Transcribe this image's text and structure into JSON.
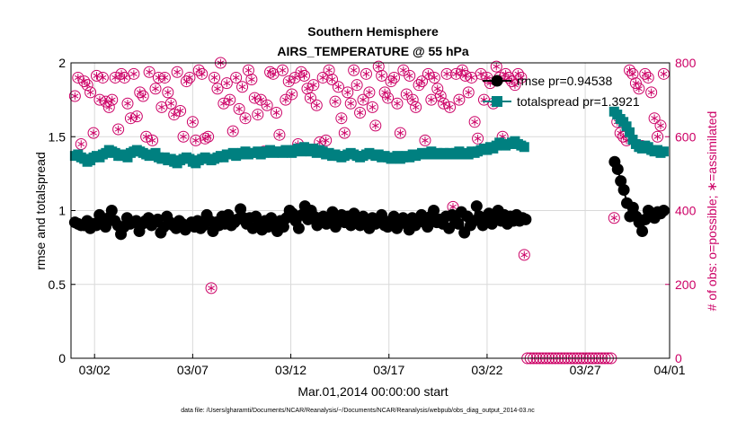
{
  "colors": {
    "rmse": "#000000",
    "spread": "#008080",
    "obs": "#cc0066",
    "grid": "#d9d9d9"
  },
  "chart_data": {
    "type": "line",
    "title": "Southern Hemisphere",
    "subtitle": "AIRS_TEMPERATURE @ 55 hPa",
    "xlabel": "Mar.01,2014 00:00:00 start",
    "ylabel_left": "rmse and totalspread",
    "ylabel_right": "# of obs: o=possible; ∗=assimilated",
    "footnote": "data file: /Users/gharamti/Documents/NCAR/Reanalysis/~/Documents/NCAR/Reanalysis/webpub/obs_diag_output_2014-03.nc",
    "xlim": [
      0.8,
      31.3
    ],
    "ylim_left": [
      0,
      2
    ],
    "ylim_right": [
      0,
      800
    ],
    "x_ticks": [
      {
        "v": 2,
        "label": "03/02"
      },
      {
        "v": 7,
        "label": "03/07"
      },
      {
        "v": 12,
        "label": "03/12"
      },
      {
        "v": 17,
        "label": "03/17"
      },
      {
        "v": 22,
        "label": "03/22"
      },
      {
        "v": 27,
        "label": "03/27"
      },
      {
        "v": 32,
        "label": "04/01"
      }
    ],
    "y_ticks_left": [
      0,
      0.5,
      1,
      1.5,
      2
    ],
    "y_ticks_right": [
      0,
      200,
      400,
      600,
      800
    ],
    "grid": true,
    "legend": {
      "placement": "top-right",
      "rmse_label": "rmse pr=0.94538",
      "spread_label": "totalspread pr=1.3921"
    },
    "series": [
      {
        "name": "rmse pr=0.94538",
        "axis": "left",
        "values": [
          0.92,
          0.91,
          0.9,
          0.9,
          0.93,
          0.88,
          0.91,
          0.9,
          0.97,
          0.92,
          0.89,
          0.95,
          1.0,
          0.93,
          0.9,
          0.84,
          0.89,
          0.95,
          0.91,
          0.92,
          0.93,
          0.86,
          0.91,
          0.93,
          0.95,
          0.9,
          0.92,
          0.94,
          0.85,
          0.89,
          0.96,
          0.92,
          0.9,
          0.88,
          0.93,
          0.91,
          0.87,
          0.9,
          0.92,
          0.89,
          0.93,
          0.88,
          0.9,
          0.97,
          0.93,
          0.86,
          0.92,
          0.9,
          0.96,
          0.91,
          0.97,
          0.9,
          0.92,
          0.94,
          1.01,
          0.95,
          0.91,
          0.95,
          0.88,
          0.96,
          0.91,
          0.87,
          0.93,
          0.89,
          0.95,
          0.91,
          0.86,
          0.93,
          0.89,
          0.95,
          1.0,
          0.98,
          0.93,
          0.88,
          0.97,
          1.03,
          0.94,
          1.0,
          0.96,
          0.9,
          0.95,
          0.96,
          0.91,
          0.93,
          0.99,
          0.89,
          0.94,
          0.97,
          0.92,
          0.96,
          0.9,
          0.98,
          0.94,
          0.9,
          0.96,
          0.93,
          0.88,
          0.95,
          0.91,
          0.94,
          0.97,
          0.9,
          0.89,
          0.93,
          0.96,
          0.88,
          0.92,
          0.95,
          0.91,
          0.87,
          0.95,
          0.9,
          0.93,
          0.97,
          0.92,
          0.89,
          0.96,
          1.0,
          0.92,
          0.94,
          0.91,
          0.96,
          0.88,
          0.97,
          0.94,
          0.91,
          0.99,
          0.85,
          0.96,
          0.9,
          0.93,
          1.03,
          0.96,
          0.9,
          0.94,
          0.98,
          0.91,
          0.95,
          1.0,
          0.93,
          0.97,
          0.91,
          0.96,
          0.93,
          0.97,
          0.93,
          0.95,
          0.94,
          null,
          null,
          null,
          null,
          null,
          null,
          null,
          null,
          null,
          null,
          null,
          null,
          null,
          null,
          null,
          null,
          null,
          null,
          null,
          null,
          null,
          null,
          null,
          null,
          null,
          null,
          null,
          null,
          1.33,
          1.28,
          1.2,
          1.14,
          1.05,
          0.96,
          1.02,
          0.96,
          0.92,
          0.86,
          0.94,
          1.0,
          0.97,
          0.95,
          0.99,
          0.98,
          1.0
        ]
      },
      {
        "name": "totalspread pr=1.3921",
        "axis": "left",
        "values": [
          1.37,
          1.38,
          1.36,
          1.35,
          1.33,
          1.34,
          1.36,
          1.37,
          1.36,
          1.38,
          1.39,
          1.41,
          1.4,
          1.39,
          1.37,
          1.37,
          1.38,
          1.36,
          1.39,
          1.4,
          1.41,
          1.4,
          1.39,
          1.38,
          1.37,
          1.38,
          1.39,
          1.36,
          1.35,
          1.36,
          1.34,
          1.35,
          1.33,
          1.32,
          1.34,
          1.35,
          1.36,
          1.35,
          1.33,
          1.32,
          1.34,
          1.35,
          1.36,
          1.35,
          1.34,
          1.35,
          1.36,
          1.37,
          1.36,
          1.38,
          1.38,
          1.39,
          1.37,
          1.38,
          1.39,
          1.4,
          1.38,
          1.39,
          1.39,
          1.4,
          1.38,
          1.39,
          1.4,
          1.41,
          1.39,
          1.4,
          1.4,
          1.39,
          1.41,
          1.4,
          1.39,
          1.41,
          1.42,
          1.4,
          1.43,
          1.41,
          1.4,
          1.42,
          1.39,
          1.41,
          1.4,
          1.38,
          1.39,
          1.37,
          1.38,
          1.37,
          1.36,
          1.37,
          1.38,
          1.39,
          1.38,
          1.37,
          1.36,
          1.37,
          1.38,
          1.39,
          1.38,
          1.37,
          1.38,
          1.36,
          1.37,
          1.36,
          1.35,
          1.36,
          1.37,
          1.35,
          1.36,
          1.37,
          1.36,
          1.38,
          1.37,
          1.38,
          1.39,
          1.38,
          1.39,
          1.4,
          1.38,
          1.39,
          1.38,
          1.39,
          1.38,
          1.39,
          1.38,
          1.39,
          1.4,
          1.38,
          1.39,
          1.38,
          1.4,
          1.39,
          1.4,
          1.41,
          1.42,
          1.41,
          1.43,
          1.42,
          1.44,
          1.46,
          1.45,
          1.44,
          1.45,
          1.46,
          1.47,
          1.45,
          1.44,
          1.43,
          null,
          null,
          null,
          null,
          null,
          null,
          null,
          null,
          null,
          null,
          null,
          null,
          null,
          null,
          null,
          null,
          null,
          null,
          null,
          null,
          null,
          null,
          null,
          null,
          null,
          null,
          null,
          null,
          1.67,
          1.65,
          1.62,
          1.6,
          1.57,
          1.53,
          1.48,
          1.45,
          1.43,
          1.42,
          1.44,
          1.43,
          1.41,
          1.4,
          1.41,
          1.39,
          1.4
        ]
      },
      {
        "name": "possible",
        "axis": "right",
        "values": [
          710,
          760,
          580,
          750,
          740,
          720,
          610,
          765,
          700,
          760,
          695,
          680,
          700,
          760,
          620,
          770,
          760,
          690,
          650,
          770,
          655,
          720,
          710,
          600,
          775,
          590,
          730,
          760,
          680,
          760,
          720,
          690,
          660,
          775,
          670,
          600,
          750,
          760,
          640,
          590,
          780,
          770,
          595,
          600,
          190,
          760,
          730,
          800,
          690,
          745,
          700,
          615,
          760,
          675,
          735,
          650,
          780,
          755,
          705,
          660,
          700,
          560,
          685,
          775,
          770,
          665,
          605,
          780,
          700,
          750,
          715,
          760,
          580,
          775,
          765,
          730,
          705,
          740,
          685,
          585,
          760,
          590,
          780,
          755,
          695,
          735,
          650,
          610,
          720,
          690,
          780,
          740,
          665,
          700,
          770,
          720,
          680,
          630,
          790,
          765,
          720,
          705,
          750,
          760,
          690,
          610,
          780,
          715,
          765,
          700,
          680,
          740,
          750,
          590,
          770,
          700,
          760,
          730,
          710,
          690,
          770,
          680,
          410,
          770,
          700,
          780,
          765,
          720,
          760,
          640,
          595,
          770,
          700,
          760,
          745,
          690,
          790,
          760,
          600,
          770,
          760,
          750,
          740,
          770,
          760,
          280,
          0,
          0,
          0,
          0,
          0,
          0,
          0,
          0,
          0,
          0,
          0,
          0,
          0,
          0,
          0,
          0,
          0,
          0,
          0,
          0,
          0,
          0,
          0,
          0,
          0,
          0,
          0,
          0,
          380,
          640,
          610,
          600,
          590,
          780,
          770,
          745,
          730,
          575,
          770,
          760,
          720,
          650,
          600,
          630,
          770
        ]
      }
    ]
  }
}
